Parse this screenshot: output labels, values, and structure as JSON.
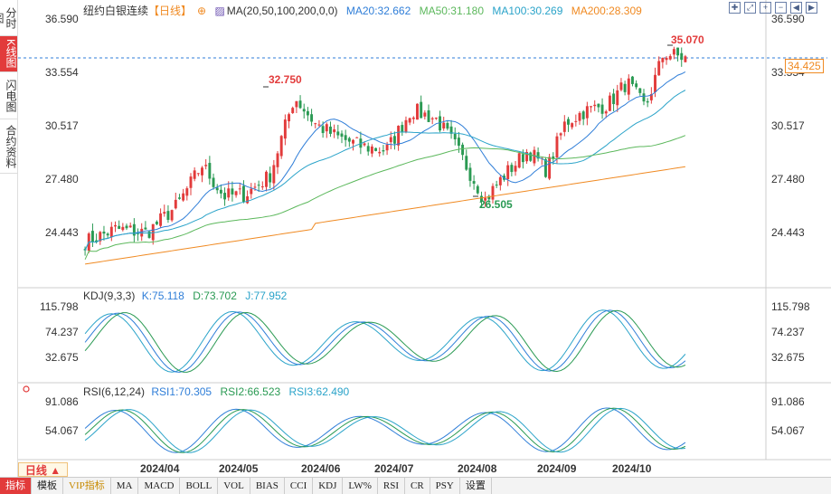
{
  "sidebar": {
    "tabs": [
      {
        "label": "分时图",
        "active": false
      },
      {
        "label": "K线图",
        "active": true
      },
      {
        "label": "闪电图",
        "active": false
      },
      {
        "label": "合约资料",
        "active": false
      }
    ]
  },
  "header": {
    "title": "纽约白银连续",
    "period": "【日线】",
    "ma_label": "MA(20,50,100,200,0,0)",
    "ma20": "MA20:32.662",
    "ma50": "MA50:31.180",
    "ma100": "MA100:30.269",
    "ma200": "MA200:28.309"
  },
  "main_chart": {
    "y_ticks": [
      "36.590",
      "33.554",
      "30.517",
      "27.480",
      "24.443"
    ],
    "y_min": 22.8,
    "y_max": 36.59,
    "high_label": "35.070",
    "low_label": "26.505",
    "local_high_label": "32.750",
    "last_price": "34.425",
    "colors": {
      "up": "#e23b3b",
      "down": "#2a9a53",
      "ma20": "#2f7ed8",
      "ma50": "#5cb85c",
      "ma100": "#2aa3c9",
      "ma200": "#f08a22"
    }
  },
  "kdj": {
    "label": "KDJ(9,3,3)",
    "k": "K:75.118",
    "d": "D:73.702",
    "j": "J:77.952",
    "y_ticks": [
      "115.798",
      "74.237",
      "32.675"
    ]
  },
  "rsi": {
    "label": "RSI(6,12,24)",
    "rsi1": "RSI1:70.305",
    "rsi2": "RSI2:66.523",
    "rsi3": "RSI3:62.490",
    "y_ticks": [
      "91.086",
      "54.067"
    ]
  },
  "x_ticks": [
    "2024/04",
    "2024/05",
    "2024/06",
    "2024/07",
    "2024/08",
    "2024/09",
    "2024/10"
  ],
  "period_select": "日线 ▲",
  "bottom_tabs": [
    {
      "label": "指标",
      "active": true,
      "vip": false
    },
    {
      "label": "模板",
      "active": false,
      "vip": false
    },
    {
      "label": "VIP指标",
      "active": false,
      "vip": true
    },
    {
      "label": "MA",
      "active": false,
      "vip": false
    },
    {
      "label": "MACD",
      "active": false,
      "vip": false
    },
    {
      "label": "BOLL",
      "active": false,
      "vip": false
    },
    {
      "label": "VOL",
      "active": false,
      "vip": false
    },
    {
      "label": "BIAS",
      "active": false,
      "vip": false
    },
    {
      "label": "CCI",
      "active": false,
      "vip": false
    },
    {
      "label": "KDJ",
      "active": false,
      "vip": false
    },
    {
      "label": "LW%",
      "active": false,
      "vip": false
    },
    {
      "label": "RSI",
      "active": false,
      "vip": false
    },
    {
      "label": "CR",
      "active": false,
      "vip": false
    },
    {
      "label": "PSY",
      "active": false,
      "vip": false
    },
    {
      "label": "设置",
      "active": false,
      "vip": false
    }
  ]
}
